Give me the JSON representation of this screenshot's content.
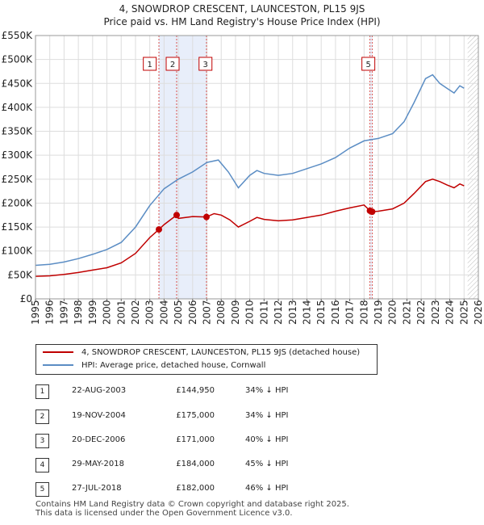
{
  "title_line1": "4, SNOWDROP CRESCENT, LAUNCESTON, PL15 9JS",
  "title_line2": "Price paid vs. HM Land Registry's House Price Index (HPI)",
  "legend": {
    "property_label": "4, SNOWDROP CRESCENT, LAUNCESTON, PL15 9JS (detached house)",
    "hpi_label": "HPI: Average price, detached house, Cornwall"
  },
  "colors": {
    "property": "#c00000",
    "hpi": "#5b8dc4",
    "shade": "#e8eefa",
    "sale_line": "#d9534f"
  },
  "transactions": [
    {
      "num": "1",
      "date": "22-AUG-2003",
      "price": "£144,950",
      "hpi_diff": "34% ↓ HPI"
    },
    {
      "num": "2",
      "date": "19-NOV-2004",
      "price": "£175,000",
      "hpi_diff": "34% ↓ HPI"
    },
    {
      "num": "3",
      "date": "20-DEC-2006",
      "price": "£171,000",
      "hpi_diff": "40% ↓ HPI"
    },
    {
      "num": "4",
      "date": "29-MAY-2018",
      "price": "£184,000",
      "hpi_diff": "45% ↓ HPI"
    },
    {
      "num": "5",
      "date": "27-JUL-2018",
      "price": "£182,000",
      "hpi_diff": "46% ↓ HPI"
    }
  ],
  "footer_line1": "Contains HM Land Registry data © Crown copyright and database right 2025.",
  "footer_line2": "This data is licensed under the Open Government Licence v3.0.",
  "chart_data": {
    "type": "line",
    "xlim": [
      1995,
      2026
    ],
    "ylim": [
      0,
      550000
    ],
    "x_ticks": [
      "1995",
      "1996",
      "1997",
      "1998",
      "1999",
      "2000",
      "2001",
      "2002",
      "2003",
      "2004",
      "2005",
      "2006",
      "2007",
      "2008",
      "2009",
      "2010",
      "2011",
      "2012",
      "2013",
      "2014",
      "2015",
      "2016",
      "2017",
      "2018",
      "2019",
      "2020",
      "2021",
      "2022",
      "2023",
      "2024",
      "2025",
      "2026"
    ],
    "y_ticks": [
      {
        "value": 0,
        "label": "£0"
      },
      {
        "value": 50000,
        "label": "£50K"
      },
      {
        "value": 100000,
        "label": "£100K"
      },
      {
        "value": 150000,
        "label": "£150K"
      },
      {
        "value": 200000,
        "label": "£200K"
      },
      {
        "value": 250000,
        "label": "£250K"
      },
      {
        "value": 300000,
        "label": "£300K"
      },
      {
        "value": 350000,
        "label": "£350K"
      },
      {
        "value": 400000,
        "label": "£400K"
      },
      {
        "value": 450000,
        "label": "£450K"
      },
      {
        "value": 500000,
        "label": "£500K"
      },
      {
        "value": 550000,
        "label": "£550K"
      }
    ],
    "grid": true,
    "shaded_ranges": [
      [
        2003.64,
        2006.97
      ],
      [
        2018.41,
        2018.57
      ]
    ],
    "hatched_from": 2025.25,
    "sale_markers": [
      {
        "label": "1",
        "x": 2003.64
      },
      {
        "label": "2",
        "x": 2004.88
      },
      {
        "label": "3",
        "x": 2006.97
      },
      {
        "label": "4",
        "x": 2018.41
      },
      {
        "label": "5",
        "x": 2018.57
      }
    ],
    "series": [
      {
        "name": "HPI: Average price, detached house, Cornwall",
        "points": [
          [
            1995,
            70000
          ],
          [
            1996,
            72000
          ],
          [
            1997,
            77000
          ],
          [
            1998,
            84000
          ],
          [
            1999,
            93000
          ],
          [
            2000,
            103000
          ],
          [
            2001,
            118000
          ],
          [
            2002,
            150000
          ],
          [
            2003,
            195000
          ],
          [
            2004,
            230000
          ],
          [
            2005,
            250000
          ],
          [
            2006,
            265000
          ],
          [
            2007,
            285000
          ],
          [
            2007.8,
            290000
          ],
          [
            2008.5,
            265000
          ],
          [
            2009.2,
            232000
          ],
          [
            2010,
            258000
          ],
          [
            2010.5,
            268000
          ],
          [
            2011,
            262000
          ],
          [
            2012,
            258000
          ],
          [
            2013,
            262000
          ],
          [
            2014,
            272000
          ],
          [
            2015,
            282000
          ],
          [
            2016,
            295000
          ],
          [
            2017,
            315000
          ],
          [
            2018,
            330000
          ],
          [
            2019,
            335000
          ],
          [
            2020,
            345000
          ],
          [
            2020.8,
            370000
          ],
          [
            2021.5,
            410000
          ],
          [
            2022.3,
            460000
          ],
          [
            2022.8,
            468000
          ],
          [
            2023.3,
            450000
          ],
          [
            2023.8,
            440000
          ],
          [
            2024.3,
            430000
          ],
          [
            2024.7,
            445000
          ],
          [
            2025,
            440000
          ]
        ]
      },
      {
        "name": "4, SNOWDROP CRESCENT, LAUNCESTON, PL15 9JS (detached house)",
        "points": [
          [
            1995,
            47000
          ],
          [
            1996,
            48000
          ],
          [
            1997,
            51000
          ],
          [
            1998,
            55000
          ],
          [
            1999,
            60000
          ],
          [
            2000,
            65000
          ],
          [
            2001,
            75000
          ],
          [
            2002,
            95000
          ],
          [
            2003,
            128000
          ],
          [
            2003.64,
            144950
          ],
          [
            2004,
            155000
          ],
          [
            2004.88,
            175000
          ],
          [
            2005,
            168000
          ],
          [
            2006,
            172000
          ],
          [
            2006.97,
            171000
          ],
          [
            2007.5,
            178000
          ],
          [
            2008,
            175000
          ],
          [
            2008.6,
            165000
          ],
          [
            2009.2,
            150000
          ],
          [
            2010,
            162000
          ],
          [
            2010.5,
            170000
          ],
          [
            2011,
            166000
          ],
          [
            2012,
            163000
          ],
          [
            2013,
            165000
          ],
          [
            2014,
            170000
          ],
          [
            2015,
            175000
          ],
          [
            2016,
            183000
          ],
          [
            2017,
            190000
          ],
          [
            2018,
            196000
          ],
          [
            2018.41,
            184000
          ],
          [
            2018.57,
            182000
          ],
          [
            2019,
            183000
          ],
          [
            2020,
            188000
          ],
          [
            2020.8,
            200000
          ],
          [
            2021.5,
            220000
          ],
          [
            2022.3,
            245000
          ],
          [
            2022.8,
            250000
          ],
          [
            2023.3,
            245000
          ],
          [
            2023.8,
            238000
          ],
          [
            2024.3,
            232000
          ],
          [
            2024.7,
            240000
          ],
          [
            2025,
            236000
          ]
        ]
      }
    ],
    "sale_points": [
      {
        "x": 2003.64,
        "y": 144950
      },
      {
        "x": 2004.88,
        "y": 175000
      },
      {
        "x": 2006.97,
        "y": 171000
      },
      {
        "x": 2018.41,
        "y": 184000
      },
      {
        "x": 2018.57,
        "y": 182000
      }
    ]
  }
}
